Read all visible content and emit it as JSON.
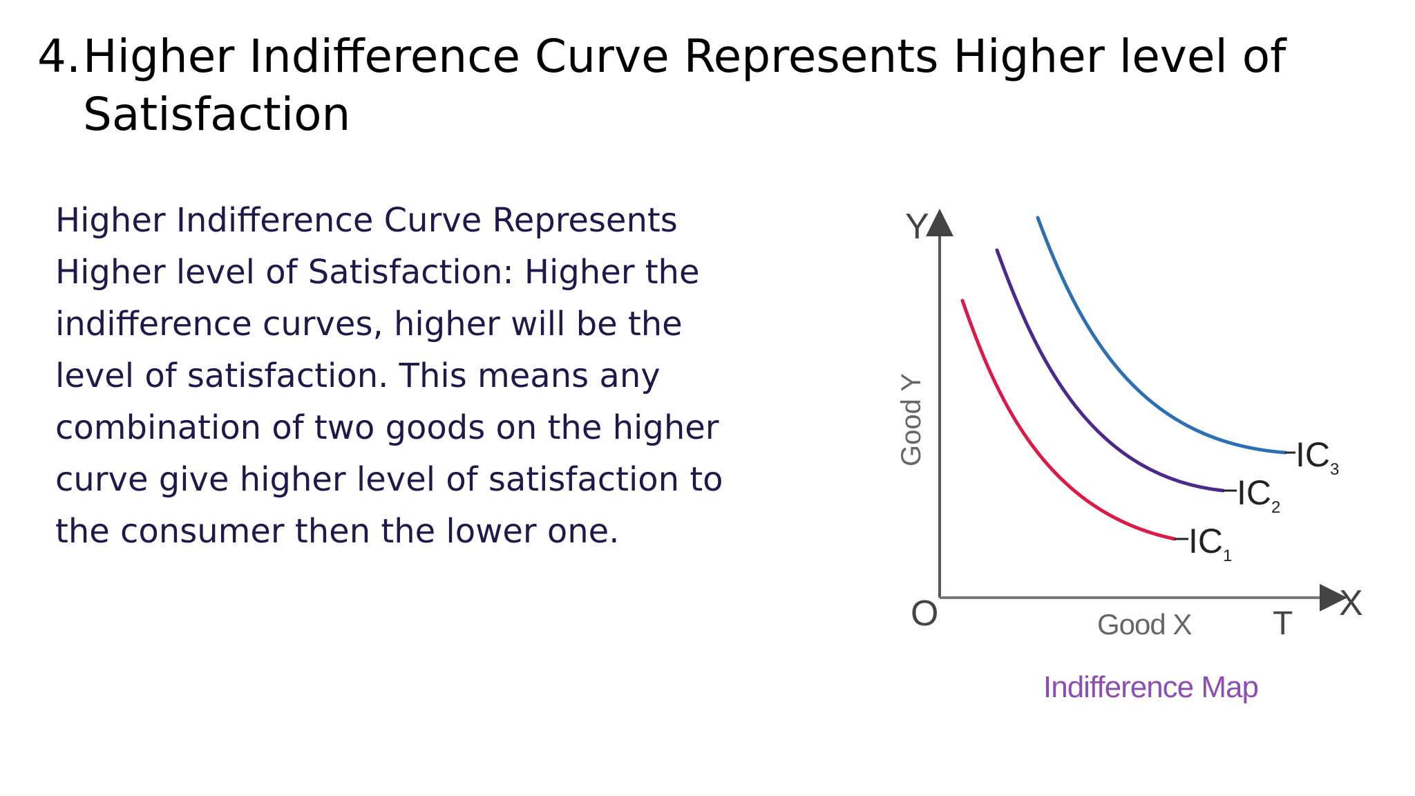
{
  "slide": {
    "title_number": "4.",
    "title_line1": "Higher Indifference Curve Represents Higher level of",
    "title_line2": "Satisfaction",
    "body_lines": [
      "Higher Indifference Curve Represents",
      "Higher level of Satisfaction: Higher the",
      "indifference curves, higher will be the",
      "level of satisfaction. This means any",
      "combination of two goods on the higher",
      "curve give higher level of satisfaction to",
      "the consumer then the lower one."
    ]
  },
  "figure": {
    "y_axis_letter": "Y",
    "x_axis_letter": "X",
    "origin_label": "O",
    "y_axis_title": "Good Y",
    "x_axis_title": "Good X",
    "t_label": "T",
    "caption": "Indifference Map",
    "curves": [
      {
        "label": "IC",
        "subscript": "1",
        "color": "#d81b4a"
      },
      {
        "label": "IC",
        "subscript": "2",
        "color": "#4a2a8a"
      },
      {
        "label": "IC",
        "subscript": "3",
        "color": "#2d6fb0"
      }
    ],
    "colors": {
      "title_text": "#000000",
      "body_text": "#1f1848",
      "axis": "#444444",
      "caption": "#8a4fb0"
    }
  }
}
